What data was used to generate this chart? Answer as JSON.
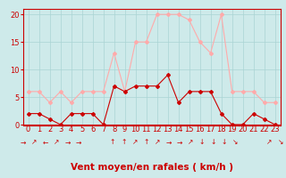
{
  "x": [
    0,
    1,
    2,
    3,
    4,
    5,
    6,
    7,
    8,
    9,
    10,
    11,
    12,
    13,
    14,
    15,
    16,
    17,
    18,
    19,
    20,
    21,
    22,
    23
  ],
  "mean_wind": [
    2,
    2,
    1,
    0,
    2,
    2,
    2,
    0,
    7,
    6,
    7,
    7,
    7,
    9,
    4,
    6,
    6,
    6,
    2,
    0,
    0,
    2,
    1,
    0
  ],
  "gust_wind": [
    6,
    6,
    4,
    6,
    4,
    6,
    6,
    6,
    13,
    6,
    15,
    15,
    20,
    20,
    20,
    19,
    15,
    13,
    20,
    6,
    6,
    6,
    4,
    4
  ],
  "mean_color": "#cc0000",
  "gust_color": "#ffaaaa",
  "bg_color": "#ceeaea",
  "grid_color": "#aad4d4",
  "xlabel": "Vent moyen/en rafales ( km/h )",
  "ylabel_ticks": [
    0,
    5,
    10,
    15,
    20
  ],
  "ylim": [
    0,
    21
  ],
  "xlim": [
    -0.5,
    23.5
  ],
  "xlabel_color": "#cc0000",
  "tick_color": "#cc0000",
  "spine_color": "#cc0000",
  "xlabel_fontsize": 7.5,
  "tick_fontsize": 6,
  "arrow_symbols": [
    "→",
    "↗",
    "←",
    "↗",
    "→",
    "→",
    "",
    "",
    "↑",
    "↑",
    "↗",
    "↑",
    "↗",
    "→",
    "→",
    "↗",
    "↓",
    "↓",
    "↓",
    "↘",
    "",
    "",
    "↗",
    "↘"
  ],
  "line_width": 0.8,
  "marker_size": 2.0
}
